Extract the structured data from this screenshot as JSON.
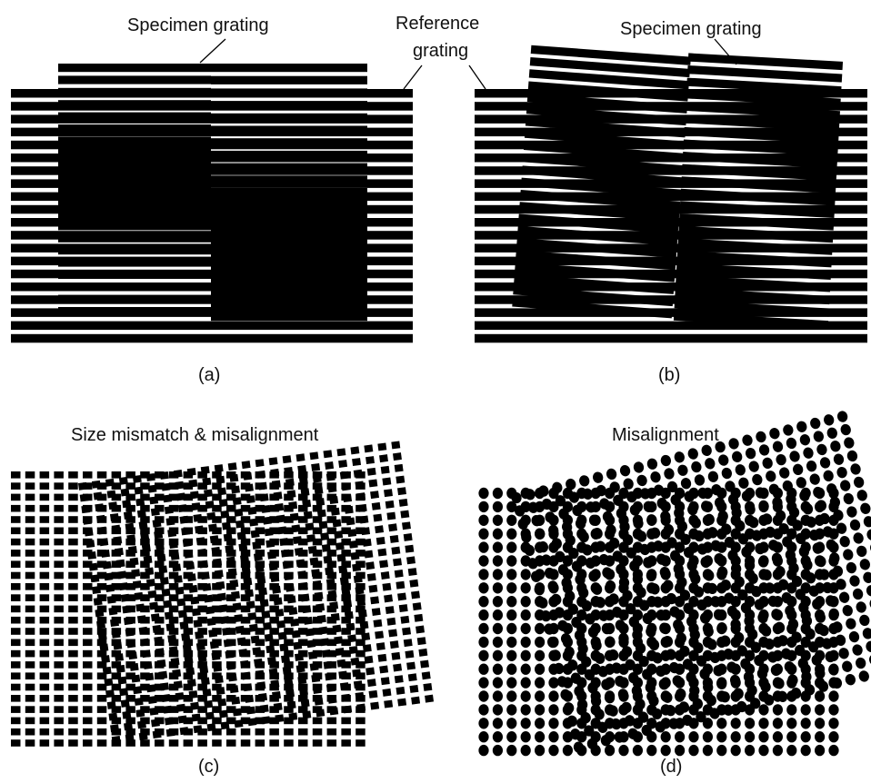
{
  "labels": {
    "specimen_a": "Specimen grating",
    "reference_1": "Reference",
    "reference_2": "grating",
    "specimen_b": "Specimen grating",
    "cap_a": "(a)",
    "cap_b": "(b)",
    "title_c": "Size mismatch & misalignment",
    "title_d": "Misalignment",
    "cap_c": "(c)",
    "cap_d": "(d)"
  },
  "colors": {
    "ink": "#000000",
    "paper": "#ffffff"
  }
}
